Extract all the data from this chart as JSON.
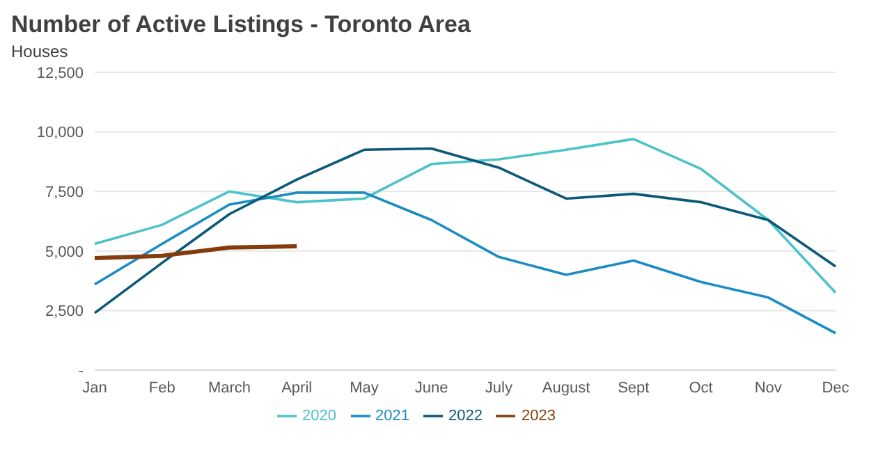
{
  "chart_data": {
    "type": "line",
    "title": "Number of Active Listings - Toronto Area",
    "subtitle": "Houses",
    "categories": [
      "Jan",
      "Feb",
      "March",
      "April",
      "May",
      "June",
      "July",
      "August",
      "Sept",
      "Oct",
      "Nov",
      "Dec"
    ],
    "series": [
      {
        "name": "2020",
        "color": "#4cc3c9",
        "values": [
          5300,
          6100,
          7500,
          7050,
          7200,
          8650,
          8850,
          9250,
          9700,
          8450,
          6300,
          3250
        ]
      },
      {
        "name": "2021",
        "color": "#1a8cc4",
        "values": [
          3600,
          5300,
          6950,
          7450,
          7450,
          6300,
          4750,
          4000,
          4600,
          3700,
          3050,
          1550
        ]
      },
      {
        "name": "2022",
        "color": "#0b5878",
        "values": [
          2400,
          4500,
          6550,
          8000,
          9250,
          9300,
          8500,
          7200,
          7400,
          7050,
          6300,
          4350
        ]
      },
      {
        "name": "2023",
        "color": "#843c0c",
        "values": [
          4700,
          4800,
          5150,
          5200,
          null,
          null,
          null,
          null,
          null,
          null,
          null,
          null
        ]
      }
    ],
    "ylim": [
      0,
      12500
    ],
    "yticks": [
      {
        "value": 0,
        "label": "-"
      },
      {
        "value": 2500,
        "label": "2,500"
      },
      {
        "value": 5000,
        "label": "5,000"
      },
      {
        "value": 7500,
        "label": "7,500"
      },
      {
        "value": 10000,
        "label": "10,000"
      },
      {
        "value": 12500,
        "label": "12,500"
      }
    ],
    "grid": "y",
    "legend": "bottom",
    "marker": "none",
    "line_style": "solid"
  }
}
